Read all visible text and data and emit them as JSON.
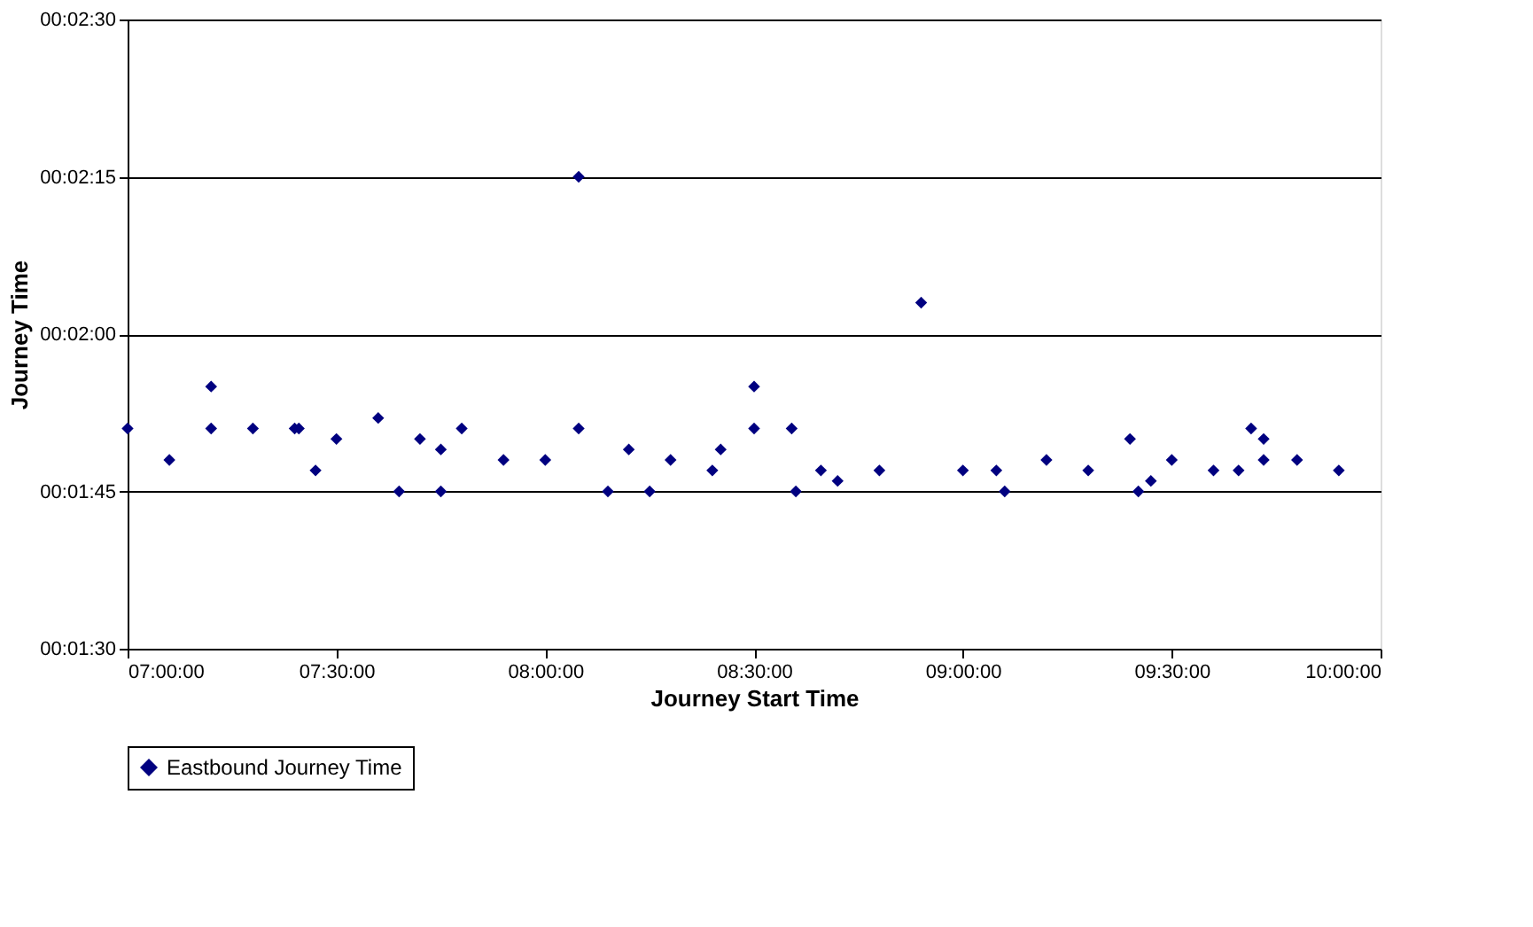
{
  "chart_data": {
    "type": "scatter",
    "xlabel": "Journey Start Time",
    "ylabel": "Journey Time",
    "x": [
      7.0,
      7.1,
      7.2,
      7.2,
      7.3,
      7.4,
      7.41,
      7.45,
      7.5,
      7.6,
      7.65,
      7.7,
      7.75,
      7.75,
      7.8,
      7.9,
      8.0,
      8.08,
      8.08,
      8.15,
      8.2,
      8.25,
      8.3,
      8.4,
      8.42,
      8.5,
      8.5,
      8.59,
      8.6,
      8.66,
      8.7,
      8.8,
      8.9,
      9.0,
      9.08,
      9.1,
      9.2,
      9.3,
      9.4,
      9.42,
      9.45,
      9.5,
      9.6,
      9.66,
      9.69,
      9.72,
      9.72,
      9.8,
      9.9
    ],
    "series": [
      {
        "name": "Eastbound Journey Time",
        "color": "#000080",
        "values": [
          111,
          108,
          115,
          111,
          111,
          111,
          111,
          107,
          110,
          112,
          105,
          110,
          105,
          109,
          111,
          108,
          108,
          135,
          111,
          105,
          109,
          105,
          108,
          107,
          109,
          115,
          111,
          111,
          105,
          107,
          106,
          107,
          123,
          107,
          107,
          105,
          108,
          107,
          110,
          105,
          106,
          108,
          107,
          107,
          111,
          110,
          108,
          108,
          107
        ]
      }
    ],
    "xlim": [
      7,
      10
    ],
    "xticks": [
      {
        "value": 7,
        "label": "07:00:00"
      },
      {
        "value": 7.5,
        "label": "07:30:00"
      },
      {
        "value": 8,
        "label": "08:00:00"
      },
      {
        "value": 8.5,
        "label": "08:30:00"
      },
      {
        "value": 9,
        "label": "09:00:00"
      },
      {
        "value": 9.5,
        "label": "09:30:00"
      },
      {
        "value": 10,
        "label": "10:00:00"
      }
    ],
    "ylim": [
      90,
      150
    ],
    "yticks": [
      {
        "value": 90,
        "label": "00:01:30"
      },
      {
        "value": 105,
        "label": "00:01:45"
      },
      {
        "value": 120,
        "label": "00:02:00"
      },
      {
        "value": 135,
        "label": "00:02:15"
      },
      {
        "value": 150,
        "label": "00:02:30"
      }
    ],
    "grid": "y",
    "legend": "bottom",
    "marker": "diamond"
  }
}
